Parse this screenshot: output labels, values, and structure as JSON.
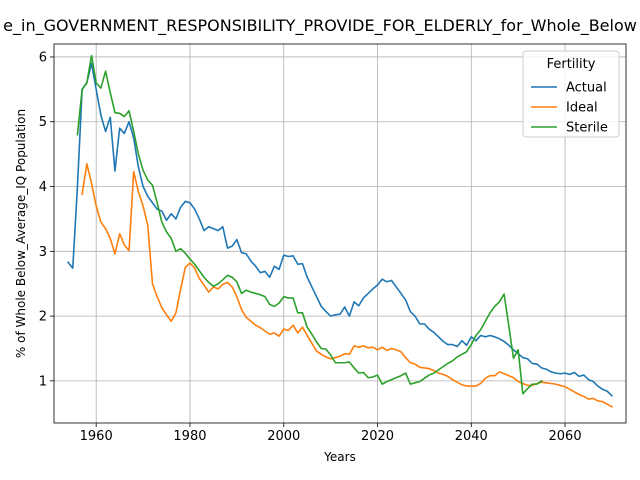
{
  "chart_data": {
    "type": "line",
    "title": "e_in_GOVERNMENT_RESPONSIBILITY_PROVIDE_FOR_ELDERLY_for_Whole_Below",
    "xlabel": "Years",
    "ylabel": "% of Whole Below_Average_IQ Population",
    "xlim": [
      1951,
      2073
    ],
    "ylim": [
      0.35,
      6.2
    ],
    "xticks": [
      1960,
      1980,
      2000,
      2020,
      2040,
      2060
    ],
    "yticks": [
      1,
      2,
      3,
      4,
      5,
      6
    ],
    "grid": true,
    "legend": {
      "title": "Fertility",
      "placement": "top-right"
    },
    "series": [
      {
        "name": "Actual",
        "color": "#1f77b4",
        "x": [
          1954,
          1955,
          1956,
          1957,
          1958,
          1959,
          1960,
          1961,
          1962,
          1963,
          1964,
          1965,
          1966,
          1967,
          1968,
          1969,
          1970,
          1971,
          1972,
          1973,
          1974,
          1975,
          1976,
          1977,
          1978,
          1979,
          1980,
          1981,
          1982,
          1983,
          1984,
          1985,
          1986,
          1987,
          1988,
          1989,
          1990,
          1991,
          1992,
          1993,
          1994,
          1995,
          1996,
          1997,
          1998,
          1999,
          2000,
          2001,
          2002,
          2003,
          2004,
          2005,
          2006,
          2007,
          2008,
          2009,
          2010,
          2011,
          2012,
          2013,
          2014,
          2015,
          2016,
          2017,
          2018,
          2019,
          2020,
          2021,
          2022,
          2023,
          2024,
          2025,
          2026,
          2027,
          2028,
          2029,
          2030,
          2031,
          2032,
          2033,
          2034,
          2035,
          2036,
          2037,
          2038,
          2039,
          2040,
          2041,
          2042,
          2043,
          2044,
          2045,
          2046,
          2047,
          2048,
          2049,
          2050,
          2051,
          2052,
          2053,
          2054,
          2055,
          2056,
          2057,
          2058,
          2059,
          2060,
          2061,
          2062,
          2063,
          2064,
          2065,
          2066,
          2067,
          2068,
          2069,
          2070
        ],
        "values": [
          2.83,
          2.74,
          4.0,
          5.5,
          5.6,
          5.9,
          5.5,
          5.1,
          4.85,
          5.07,
          4.24,
          4.9,
          4.82,
          5.0,
          4.75,
          4.3,
          4.0,
          3.85,
          3.75,
          3.65,
          3.62,
          3.48,
          3.58,
          3.5,
          3.68,
          3.77,
          3.75,
          3.65,
          3.5,
          3.32,
          3.38,
          3.35,
          3.32,
          3.38,
          3.05,
          3.08,
          3.18,
          2.98,
          2.96,
          2.85,
          2.77,
          2.67,
          2.69,
          2.6,
          2.77,
          2.72,
          2.94,
          2.92,
          2.93,
          2.8,
          2.81,
          2.6,
          2.45,
          2.3,
          2.15,
          2.07,
          2.0,
          2.02,
          2.03,
          2.14,
          2.0,
          2.22,
          2.16,
          2.28,
          2.35,
          2.42,
          2.48,
          2.57,
          2.53,
          2.55,
          2.45,
          2.35,
          2.25,
          2.07,
          2.0,
          1.88,
          1.88,
          1.8,
          1.75,
          1.68,
          1.61,
          1.56,
          1.56,
          1.53,
          1.62,
          1.55,
          1.68,
          1.62,
          1.7,
          1.68,
          1.7,
          1.68,
          1.65,
          1.61,
          1.55,
          1.48,
          1.42,
          1.36,
          1.34,
          1.27,
          1.26,
          1.2,
          1.18,
          1.14,
          1.12,
          1.11,
          1.12,
          1.1,
          1.13,
          1.07,
          1.09,
          1.02,
          0.99,
          0.92,
          0.87,
          0.84,
          0.77
        ]
      },
      {
        "name": "Ideal",
        "color": "#ff7f0e",
        "x": [
          1957,
          1958,
          1959,
          1960,
          1961,
          1962,
          1963,
          1964,
          1965,
          1966,
          1967,
          1968,
          1969,
          1970,
          1971,
          1972,
          1973,
          1974,
          1975,
          1976,
          1977,
          1978,
          1979,
          1980,
          1981,
          1982,
          1983,
          1984,
          1985,
          1986,
          1987,
          1988,
          1989,
          1990,
          1991,
          1992,
          1993,
          1994,
          1995,
          1996,
          1997,
          1998,
          1999,
          2000,
          2001,
          2002,
          2003,
          2004,
          2005,
          2006,
          2007,
          2008,
          2009,
          2010,
          2011,
          2012,
          2013,
          2014,
          2015,
          2016,
          2017,
          2018,
          2019,
          2020,
          2021,
          2022,
          2023,
          2024,
          2025,
          2026,
          2027,
          2028,
          2029,
          2030,
          2031,
          2032,
          2033,
          2034,
          2035,
          2036,
          2037,
          2038,
          2039,
          2040,
          2041,
          2042,
          2043,
          2044,
          2045,
          2046,
          2047,
          2048,
          2049,
          2050,
          2051,
          2052,
          2053,
          2054,
          2055,
          2056,
          2057,
          2058,
          2059,
          2060,
          2061,
          2062,
          2063,
          2064,
          2065,
          2066,
          2067,
          2068,
          2069,
          2070
        ],
        "values": [
          3.88,
          4.35,
          4.05,
          3.7,
          3.45,
          3.35,
          3.2,
          2.96,
          3.27,
          3.1,
          3.01,
          4.23,
          3.92,
          3.7,
          3.4,
          2.5,
          2.3,
          2.13,
          2.02,
          1.92,
          2.05,
          2.41,
          2.75,
          2.82,
          2.74,
          2.58,
          2.48,
          2.37,
          2.45,
          2.42,
          2.49,
          2.52,
          2.45,
          2.3,
          2.1,
          1.98,
          1.92,
          1.86,
          1.82,
          1.77,
          1.72,
          1.74,
          1.69,
          1.8,
          1.78,
          1.86,
          1.74,
          1.83,
          1.7,
          1.58,
          1.46,
          1.41,
          1.37,
          1.34,
          1.36,
          1.38,
          1.42,
          1.41,
          1.54,
          1.52,
          1.54,
          1.51,
          1.52,
          1.48,
          1.52,
          1.47,
          1.5,
          1.48,
          1.45,
          1.36,
          1.28,
          1.26,
          1.21,
          1.2,
          1.19,
          1.16,
          1.12,
          1.1,
          1.07,
          1.02,
          0.98,
          0.94,
          0.92,
          0.92,
          0.92,
          0.96,
          1.04,
          1.08,
          1.08,
          1.14,
          1.11,
          1.08,
          1.05,
          0.99,
          0.96,
          0.93,
          0.93,
          0.96,
          0.98,
          0.97,
          0.96,
          0.95,
          0.93,
          0.91,
          0.87,
          0.83,
          0.79,
          0.76,
          0.72,
          0.73,
          0.69,
          0.68,
          0.64,
          0.6
        ]
      },
      {
        "name": "Sterile",
        "color": "#2ca02c",
        "x": [
          1956,
          1957,
          1958,
          1959,
          1960,
          1961,
          1962,
          1963,
          1964,
          1965,
          1966,
          1967,
          1968,
          1969,
          1970,
          1971,
          1972,
          1973,
          1974,
          1975,
          1976,
          1977,
          1978,
          1979,
          1980,
          1981,
          1982,
          1983,
          1984,
          1985,
          1986,
          1987,
          1988,
          1989,
          1990,
          1991,
          1992,
          1993,
          1994,
          1995,
          1996,
          1997,
          1998,
          1999,
          2000,
          2001,
          2002,
          2003,
          2004,
          2005,
          2006,
          2007,
          2008,
          2009,
          2010,
          2011,
          2012,
          2013,
          2014,
          2015,
          2016,
          2017,
          2018,
          2019,
          2020,
          2021,
          2022,
          2023,
          2024,
          2025,
          2026,
          2027,
          2028,
          2029,
          2030,
          2031,
          2032,
          2033,
          2034,
          2035,
          2036,
          2037,
          2038,
          2039,
          2040,
          2041,
          2042,
          2043,
          2044,
          2045,
          2046,
          2047,
          2048,
          2049,
          2050,
          2051,
          2052,
          2053,
          2054,
          2055
        ],
        "values": [
          4.8,
          5.5,
          5.6,
          6.02,
          5.6,
          5.52,
          5.78,
          5.45,
          5.14,
          5.13,
          5.08,
          5.17,
          4.85,
          4.5,
          4.25,
          4.1,
          4.02,
          3.75,
          3.45,
          3.3,
          3.2,
          3.0,
          3.04,
          2.97,
          2.88,
          2.8,
          2.7,
          2.6,
          2.52,
          2.46,
          2.5,
          2.56,
          2.63,
          2.6,
          2.53,
          2.35,
          2.4,
          2.37,
          2.35,
          2.33,
          2.3,
          2.18,
          2.15,
          2.2,
          2.3,
          2.28,
          2.28,
          2.05,
          2.05,
          1.83,
          1.72,
          1.6,
          1.5,
          1.49,
          1.4,
          1.28,
          1.28,
          1.28,
          1.29,
          1.2,
          1.12,
          1.13,
          1.05,
          1.06,
          1.09,
          0.95,
          0.99,
          1.02,
          1.05,
          1.08,
          1.12,
          0.95,
          0.97,
          0.99,
          1.04,
          1.09,
          1.12,
          1.17,
          1.22,
          1.27,
          1.31,
          1.37,
          1.41,
          1.45,
          1.56,
          1.7,
          1.79,
          1.92,
          2.05,
          2.15,
          2.22,
          2.34,
          1.85,
          1.35,
          1.48,
          0.8,
          0.88,
          0.95,
          0.95,
          1.0
        ]
      }
    ]
  }
}
